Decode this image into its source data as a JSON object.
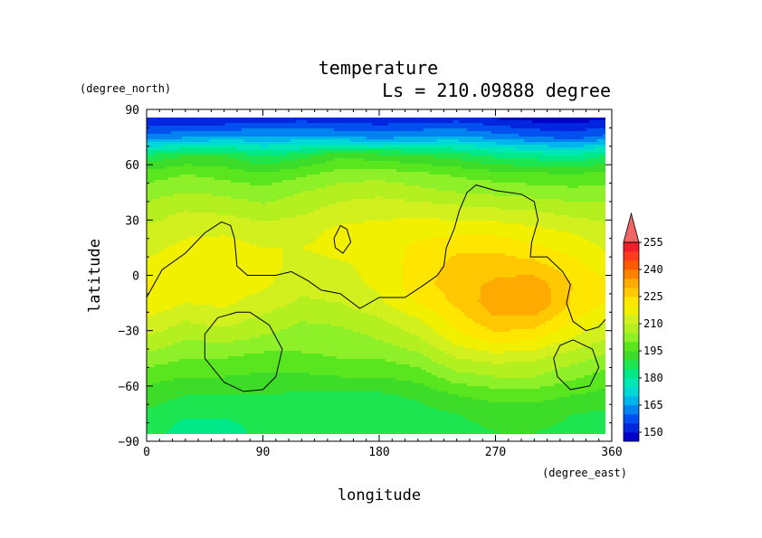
{
  "chart_data": {
    "type": "heatmap",
    "title": "temperature",
    "subtitle": "Ls = 210.09888 degree",
    "xlabel": "longitude",
    "ylabel": "latitude",
    "x_units": "(degree_east)",
    "y_units": "(degree_north)",
    "xlim": [
      0,
      360
    ],
    "ylim": [
      -90,
      90
    ],
    "x_ticks": [
      0,
      90,
      180,
      270,
      360
    ],
    "y_ticks": [
      90,
      60,
      30,
      0,
      -30,
      -60,
      -90
    ],
    "x_tick_labels": [
      "0",
      "90",
      "180",
      "270",
      "360"
    ],
    "y_tick_labels": [
      "90",
      "60",
      "30",
      "0",
      "−30",
      "−60",
      "−90"
    ],
    "colorbar": {
      "levels": [
        145,
        150,
        155,
        160,
        165,
        170,
        175,
        180,
        185,
        190,
        195,
        200,
        205,
        210,
        215,
        220,
        225,
        230,
        235,
        240,
        245,
        250,
        255,
        260
      ],
      "labeled_levels": [
        150,
        165,
        180,
        195,
        210,
        225,
        240,
        255
      ],
      "labels": [
        "150",
        "165",
        "180",
        "195",
        "210",
        "225",
        "240",
        "255"
      ],
      "colors": [
        "#0000c8",
        "#0026e0",
        "#0050f0",
        "#0082f0",
        "#00b4ee",
        "#00d8d8",
        "#00e8b4",
        "#00e888",
        "#1ee650",
        "#3cdc28",
        "#5ae61e",
        "#8ef028",
        "#b4f020",
        "#d2f01e",
        "#f0f000",
        "#ffe600",
        "#ffc800",
        "#ffaa00",
        "#ff8200",
        "#ff5a00",
        "#ff3c1e",
        "#f01e28",
        "#f06464"
      ],
      "extend": "max"
    },
    "field_grid": {
      "lon": [
        0,
        30,
        60,
        90,
        120,
        150,
        180,
        210,
        240,
        270,
        300,
        330,
        360
      ],
      "lat": [
        85,
        75,
        65,
        55,
        45,
        35,
        25,
        15,
        5,
        -5,
        -15,
        -25,
        -35,
        -45,
        -55,
        -65,
        -75,
        -85
      ],
      "values": [
        [
          150,
          150,
          150,
          152,
          153,
          152,
          151,
          152,
          153,
          150,
          148,
          147,
          150
        ],
        [
          162,
          164,
          166,
          166,
          166,
          165,
          163,
          165,
          166,
          163,
          160,
          158,
          162
        ],
        [
          186,
          190,
          190,
          184,
          188,
          194,
          192,
          190,
          188,
          184,
          182,
          180,
          186
        ],
        [
          197,
          200,
          198,
          196,
          199,
          202,
          203,
          201,
          199,
          197,
          196,
          195,
          197
        ],
        [
          203,
          205,
          204,
          202,
          205,
          208,
          209,
          207,
          205,
          204,
          203,
          202,
          203
        ],
        [
          207,
          210,
          209,
          207,
          209,
          212,
          213,
          213,
          212,
          211,
          210,
          208,
          207
        ],
        [
          211,
          214,
          214,
          212,
          213,
          216,
          217,
          218,
          218,
          218,
          216,
          214,
          211
        ],
        [
          214,
          216,
          217,
          215,
          215,
          217,
          218,
          221,
          224,
          224,
          221,
          218,
          214
        ],
        [
          216,
          216,
          218,
          217,
          213,
          214,
          217,
          222,
          227,
          228,
          227,
          222,
          216
        ],
        [
          221,
          217,
          217,
          216,
          212,
          213,
          216,
          223,
          228,
          231,
          233,
          225,
          221
        ],
        [
          219,
          215,
          216,
          213,
          209,
          210,
          214,
          220,
          226,
          233,
          235,
          224,
          219
        ],
        [
          214,
          210,
          212,
          208,
          205,
          206,
          209,
          214,
          222,
          229,
          228,
          220,
          214
        ],
        [
          209,
          205,
          206,
          204,
          202,
          202,
          205,
          209,
          217,
          222,
          220,
          214,
          209
        ],
        [
          203,
          200,
          200,
          198,
          199,
          200,
          200,
          203,
          210,
          212,
          211,
          207,
          203
        ],
        [
          197,
          195,
          195,
          194,
          194,
          195,
          195,
          197,
          203,
          205,
          205,
          201,
          197
        ],
        [
          193,
          190,
          190,
          190,
          189,
          189,
          189,
          191,
          195,
          197,
          197,
          195,
          193
        ],
        [
          189,
          186,
          186,
          187,
          187,
          187,
          187,
          188,
          190,
          192,
          192,
          190,
          189
        ],
        [
          188,
          182,
          182,
          187,
          189,
          189,
          189,
          187,
          188,
          190,
          190,
          189,
          188
        ]
      ]
    },
    "contours": [
      {
        "name": "",
        "points": [
          [
            0,
            -12
          ],
          [
            12,
            3
          ],
          [
            30,
            12
          ],
          [
            45,
            23
          ],
          [
            58,
            29
          ],
          [
            65,
            27
          ],
          [
            68,
            20
          ],
          [
            70,
            5
          ],
          [
            78,
            0
          ],
          [
            100,
            0
          ],
          [
            112,
            2
          ],
          [
            125,
            -3
          ],
          [
            135,
            -8
          ],
          [
            150,
            -10
          ],
          [
            165,
            -18
          ],
          [
            180,
            -12
          ],
          [
            200,
            -12
          ],
          [
            215,
            -5
          ],
          [
            225,
            0
          ],
          [
            230,
            5
          ],
          [
            232,
            15
          ],
          [
            238,
            25
          ],
          [
            242,
            35
          ],
          [
            248,
            45
          ],
          [
            255,
            49
          ],
          [
            270,
            46
          ],
          [
            290,
            44
          ],
          [
            300,
            40
          ],
          [
            303,
            30
          ],
          [
            298,
            18
          ],
          [
            297,
            10
          ],
          [
            310,
            10
          ],
          [
            322,
            2
          ],
          [
            328,
            -5
          ],
          [
            325,
            -15
          ],
          [
            330,
            -25
          ],
          [
            340,
            -30
          ],
          [
            350,
            -28
          ],
          [
            360,
            -20
          ]
        ]
      },
      {
        "name": "",
        "points": [
          [
            145,
            20
          ],
          [
            150,
            27
          ],
          [
            155,
            25
          ],
          [
            158,
            18
          ],
          [
            152,
            12
          ],
          [
            146,
            15
          ],
          [
            145,
            20
          ]
        ]
      },
      {
        "name": "",
        "points": [
          [
            80,
            -20
          ],
          [
            95,
            -27
          ],
          [
            105,
            -40
          ],
          [
            100,
            -55
          ],
          [
            90,
            -62
          ],
          [
            75,
            -63
          ],
          [
            60,
            -58
          ],
          [
            45,
            -45
          ],
          [
            45,
            -32
          ],
          [
            55,
            -23
          ],
          [
            70,
            -20
          ],
          [
            80,
            -20
          ]
        ]
      },
      {
        "name": "",
        "points": [
          [
            330,
            -35
          ],
          [
            345,
            -40
          ],
          [
            350,
            -50
          ],
          [
            343,
            -60
          ],
          [
            328,
            -62
          ],
          [
            318,
            -55
          ],
          [
            315,
            -45
          ],
          [
            320,
            -38
          ],
          [
            330,
            -35
          ]
        ]
      }
    ],
    "grid": false,
    "legend": "colorbar-right"
  }
}
